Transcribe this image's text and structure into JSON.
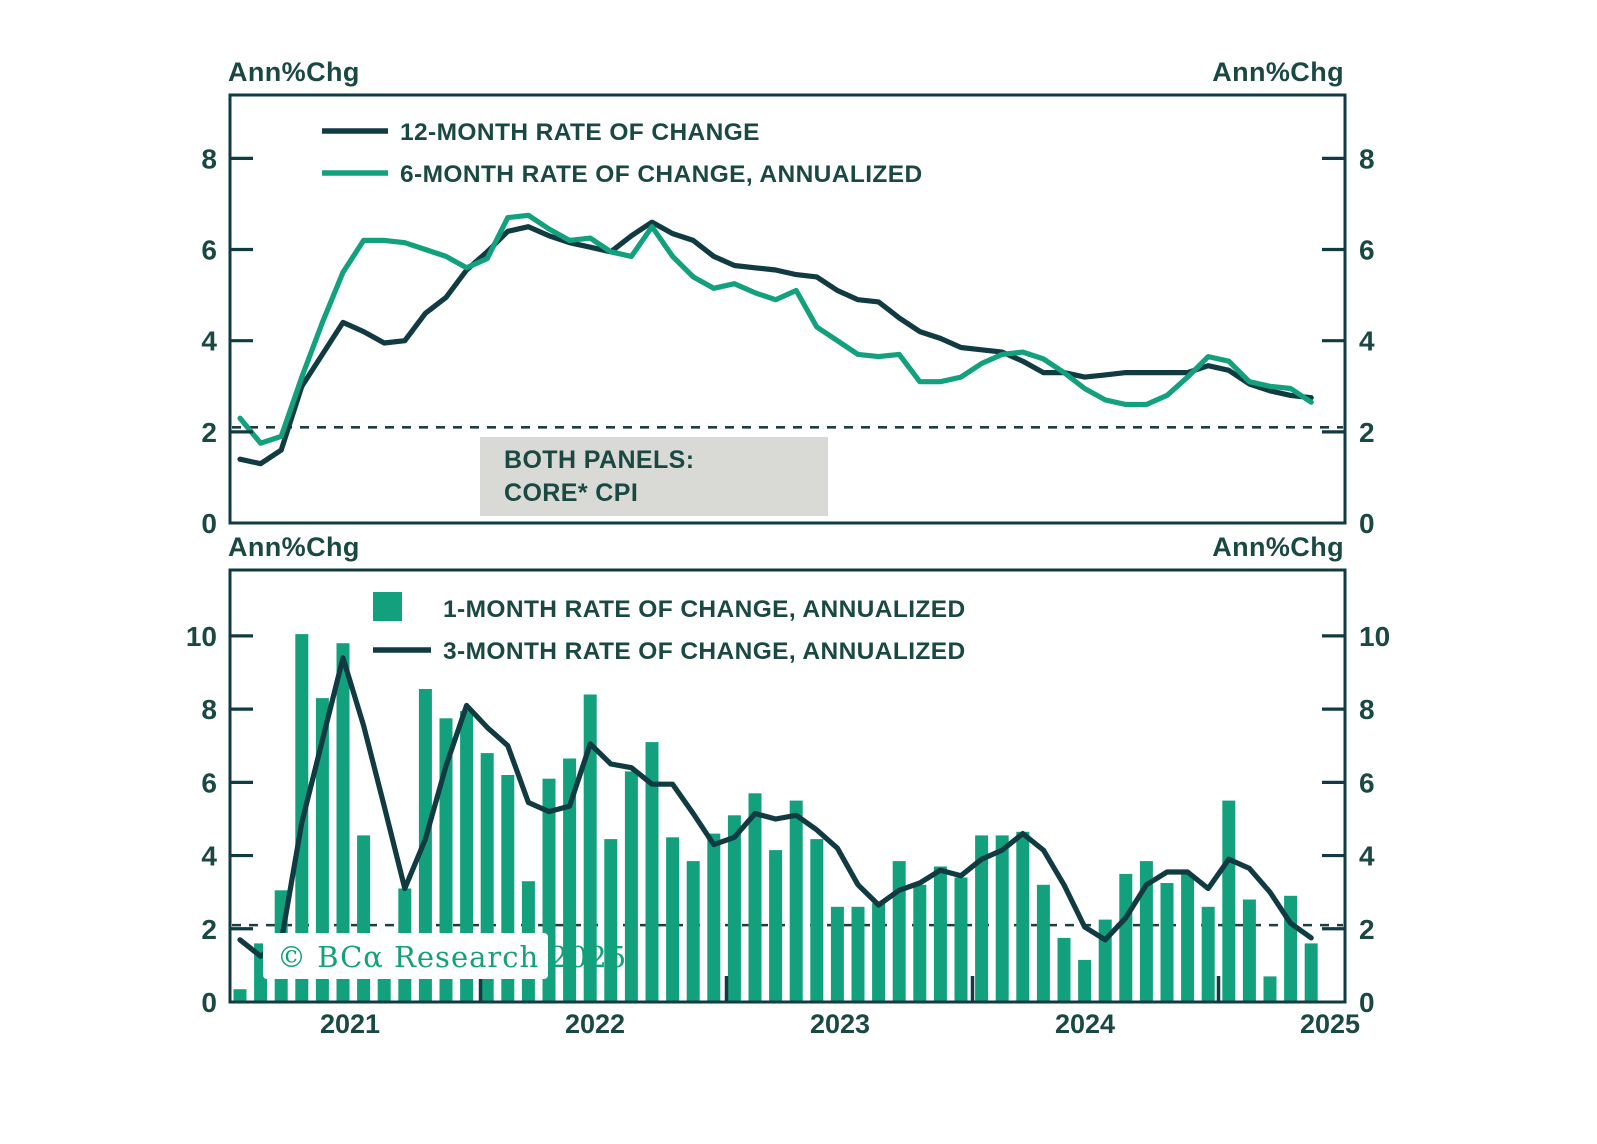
{
  "unit_label": "Ann%Chg",
  "colors": {
    "background": "#FFFFFF",
    "green": "#13A17D",
    "dark": "#113B42",
    "text": "#1A4843",
    "dashed": "#1C3F3F",
    "annotation_bg": "#D9D9D6"
  },
  "top_panel": {
    "legend": [
      {
        "label": "12-MONTH RATE OF CHANGE",
        "swatch": "line",
        "color": "#113B42"
      },
      {
        "label": "6-MONTH RATE OF CHANGE, ANNUALIZED",
        "swatch": "line",
        "color": "#13A17D"
      }
    ],
    "annotation": {
      "line1": "BOTH PANELS:",
      "line2": "CORE* CPI"
    }
  },
  "bottom_panel": {
    "legend": [
      {
        "label": "1-MONTH RATE OF CHANGE, ANNUALIZED",
        "swatch": "square",
        "color": "#13A17D"
      },
      {
        "label": "3-MONTH RATE OF CHANGE, ANNUALIZED",
        "swatch": "line",
        "color": "#113B42"
      }
    ],
    "watermark": "© BCα Research 2025"
  },
  "chart_data": [
    {
      "type": "line",
      "ylabel": "Ann%Chg",
      "ylim": [
        0,
        9.4
      ],
      "yticks": [
        0,
        2,
        4,
        6,
        8
      ],
      "dashed_reference_value": 2.1,
      "grid": false,
      "legend_position": "top-left",
      "x_year_labels": [
        "2021",
        "2022",
        "2023",
        "2024",
        "2025"
      ],
      "series": [
        {
          "name": "12-MONTH RATE OF CHANGE",
          "color": "#113B42",
          "values": [
            1.4,
            1.3,
            1.6,
            3.0,
            3.7,
            4.4,
            4.2,
            3.95,
            4.0,
            4.6,
            4.95,
            5.55,
            5.95,
            6.4,
            6.5,
            6.3,
            6.15,
            6.05,
            5.95,
            6.3,
            6.6,
            6.35,
            6.2,
            5.85,
            5.65,
            5.6,
            5.55,
            5.45,
            5.4,
            5.1,
            4.9,
            4.85,
            4.5,
            4.2,
            4.05,
            3.85,
            3.8,
            3.75,
            3.55,
            3.3,
            3.3,
            3.2,
            3.25,
            3.3,
            3.3,
            3.3,
            3.3,
            3.45,
            3.35,
            3.05,
            2.9,
            2.8,
            2.75
          ]
        },
        {
          "name": "6-MONTH RATE OF CHANGE, ANNUALIZED",
          "color": "#13A17D",
          "values": [
            2.3,
            1.75,
            1.9,
            3.2,
            4.4,
            5.5,
            6.2,
            6.2,
            6.15,
            6.0,
            5.85,
            5.6,
            5.8,
            6.7,
            6.75,
            6.45,
            6.2,
            6.25,
            5.95,
            5.85,
            6.5,
            5.85,
            5.4,
            5.15,
            5.25,
            5.05,
            4.9,
            5.1,
            4.3,
            4.0,
            3.7,
            3.65,
            3.7,
            3.1,
            3.1,
            3.2,
            3.5,
            3.7,
            3.75,
            3.6,
            3.3,
            2.95,
            2.7,
            2.6,
            2.6,
            2.8,
            3.2,
            3.65,
            3.55,
            3.1,
            3.0,
            2.95,
            2.65
          ]
        }
      ]
    },
    {
      "type": "bar",
      "ylabel": "Ann%Chg",
      "ylim": [
        0,
        11.8
      ],
      "yticks": [
        0,
        2,
        4,
        6,
        8,
        10
      ],
      "dashed_reference_value": 2.1,
      "grid": false,
      "legend_position": "top-left",
      "x_year_labels": [
        "2021",
        "2022",
        "2023",
        "2024",
        "2025"
      ],
      "series": [
        {
          "name": "1-MONTH RATE OF CHANGE, ANNUALIZED",
          "type": "bar",
          "color": "#13A17D",
          "values": [
            0.35,
            1.6,
            3.05,
            10.05,
            8.3,
            9.8,
            4.55,
            1.7,
            3.1,
            8.55,
            7.75,
            7.95,
            6.8,
            6.2,
            3.3,
            6.1,
            6.65,
            8.4,
            4.45,
            6.3,
            7.1,
            4.5,
            3.85,
            4.6,
            5.1,
            5.7,
            4.15,
            5.5,
            4.45,
            2.6,
            2.6,
            2.7,
            3.85,
            3.2,
            3.7,
            3.4,
            4.55,
            4.55,
            4.65,
            3.2,
            1.75,
            1.15,
            2.25,
            3.5,
            3.85,
            3.25,
            3.5,
            2.6,
            5.5,
            2.8,
            0.7,
            2.9,
            1.6
          ]
        },
        {
          "name": "3-MONTH RATE OF CHANGE, ANNUALIZED",
          "type": "line",
          "color": "#113B42",
          "values": [
            1.7,
            1.25,
            1.65,
            4.9,
            7.15,
            9.4,
            7.55,
            5.35,
            3.1,
            4.45,
            6.45,
            8.1,
            7.5,
            7.0,
            5.45,
            5.2,
            5.35,
            7.05,
            6.5,
            6.4,
            5.95,
            5.95,
            5.15,
            4.3,
            4.5,
            5.15,
            5.0,
            5.1,
            4.7,
            4.2,
            3.2,
            2.65,
            3.05,
            3.25,
            3.6,
            3.45,
            3.9,
            4.15,
            4.6,
            4.15,
            3.2,
            2.05,
            1.7,
            2.3,
            3.2,
            3.55,
            3.55,
            3.1,
            3.9,
            3.65,
            3.0,
            2.15,
            1.75
          ]
        }
      ]
    }
  ]
}
